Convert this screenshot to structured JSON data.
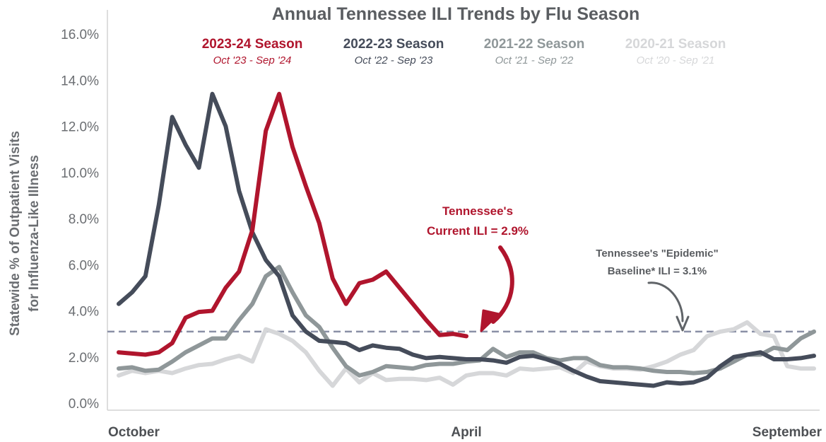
{
  "chart_data": {
    "type": "line",
    "title": "Annual Tennessee ILI Trends by Flu Season",
    "ylabel_lines": [
      "Statewide % of Outpatient Visits",
      "for Influenza-Like Illness"
    ],
    "ylim": [
      0,
      16
    ],
    "yticks": [
      "0.0%",
      "2.0%",
      "4.0%",
      "6.0%",
      "8.0%",
      "10.0%",
      "12.0%",
      "14.0%",
      "16.0%"
    ],
    "xticks": [
      {
        "label": "October",
        "week": 1
      },
      {
        "label": "April",
        "week": 27
      },
      {
        "label": "September",
        "week": 52
      }
    ],
    "baseline": {
      "value": 3.1,
      "lines": [
        "Tennessee's \"Epidemic\"",
        "Baseline* ILI = 3.1%"
      ]
    },
    "current_annotation": {
      "value": 2.9,
      "lines": [
        "Tennessee's",
        "Current ILI = 2.9%"
      ]
    },
    "series": [
      {
        "name": "2020-21 Season",
        "range": "Oct '20 - Sep '21",
        "color": "#d6d7d9",
        "values": [
          1.2,
          1.4,
          1.3,
          1.4,
          1.3,
          1.5,
          1.65,
          1.7,
          1.9,
          2.05,
          1.8,
          3.2,
          3.0,
          2.7,
          2.2,
          1.4,
          0.75,
          1.5,
          0.9,
          1.3,
          1.0,
          1.05,
          1.05,
          1.0,
          1.1,
          0.8,
          1.2,
          1.3,
          1.3,
          1.2,
          1.5,
          1.45,
          1.5,
          1.55,
          1.3,
          1.8,
          1.6,
          1.5,
          1.5,
          1.45,
          1.6,
          1.8,
          2.1,
          2.3,
          2.9,
          3.1,
          3.2,
          3.5,
          3.0,
          2.9,
          1.6,
          1.5,
          1.5
        ]
      },
      {
        "name": "2021-22 Season",
        "range": "Oct '21 - Sep '22",
        "color": "#8f9799",
        "values": [
          1.5,
          1.55,
          1.4,
          1.45,
          1.8,
          2.2,
          2.5,
          2.8,
          2.8,
          3.6,
          4.3,
          5.5,
          5.9,
          4.8,
          3.8,
          3.3,
          2.4,
          1.6,
          1.2,
          1.35,
          1.6,
          1.55,
          1.5,
          1.65,
          1.7,
          1.7,
          1.8,
          1.85,
          2.35,
          2.0,
          2.2,
          2.2,
          1.95,
          1.85,
          1.95,
          1.95,
          1.65,
          1.55,
          1.55,
          1.5,
          1.4,
          1.35,
          1.35,
          1.3,
          1.35,
          1.5,
          1.8,
          2.1,
          2.1,
          2.4,
          2.3,
          2.8,
          3.1
        ]
      },
      {
        "name": "2022-23 Season",
        "range": "Oct '22 - Sep '23",
        "color": "#454c5a",
        "values": [
          4.3,
          4.8,
          5.5,
          8.6,
          12.4,
          11.2,
          10.2,
          13.4,
          12.0,
          9.2,
          7.4,
          6.2,
          5.5,
          3.8,
          3.1,
          2.7,
          2.65,
          2.6,
          2.3,
          2.5,
          2.4,
          2.35,
          2.1,
          1.95,
          2.0,
          1.95,
          1.9,
          1.9,
          1.85,
          1.75,
          2.0,
          2.05,
          1.9,
          1.7,
          1.4,
          1.15,
          0.95,
          0.9,
          0.85,
          0.8,
          0.75,
          0.9,
          0.85,
          0.9,
          1.1,
          1.6,
          2.0,
          2.1,
          2.2,
          1.9,
          1.9,
          1.95,
          2.05
        ]
      },
      {
        "name": "2023-24 Season",
        "range": "Oct '23 - Sep '24",
        "color": "#b0152d",
        "values": [
          2.2,
          2.15,
          2.1,
          2.2,
          2.6,
          3.7,
          3.95,
          4.0,
          5.0,
          5.7,
          7.5,
          11.8,
          13.4,
          11.1,
          9.4,
          7.8,
          5.4,
          4.3,
          5.2,
          5.35,
          5.7,
          5.0,
          4.3,
          3.6,
          2.95,
          3.0,
          2.9
        ]
      }
    ]
  }
}
